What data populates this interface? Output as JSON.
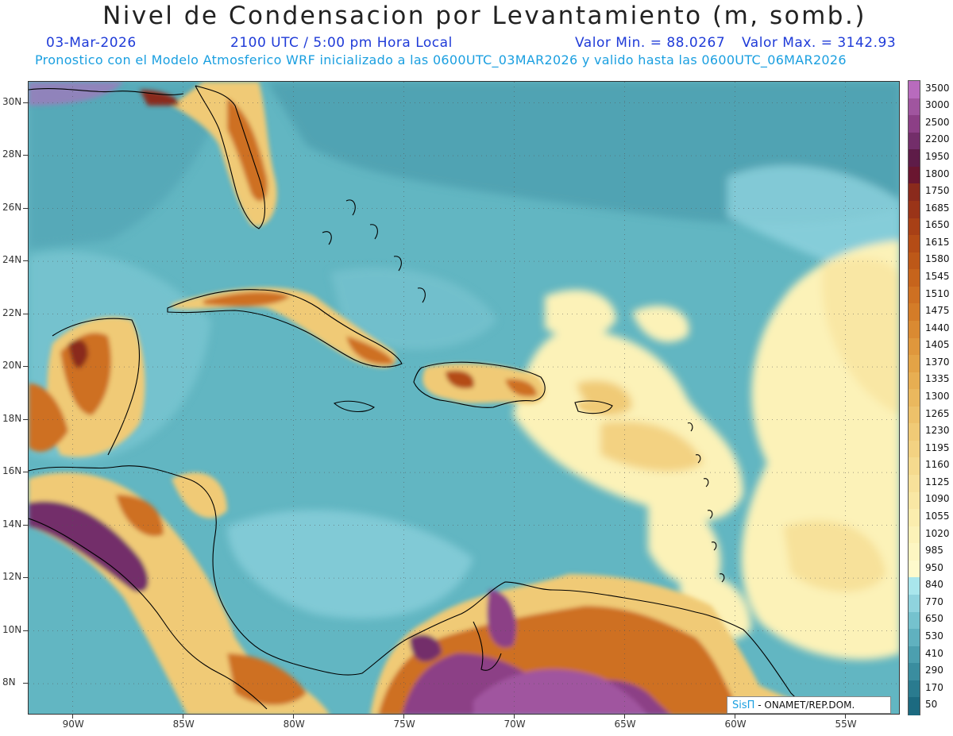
{
  "header": {
    "title": "Nivel de Condensacion por Levantamiento (m, somb.)",
    "date": "03-Mar-2026",
    "time": "2100 UTC / 5:00 pm Hora Local",
    "valmin": "Valor Min. = 88.0267",
    "valmax": "Valor Max. = 3142.93",
    "model_line": "Pronostico con el Modelo Atmosferico WRF inicializado a las 0600UTC_03MAR2026 y valido hasta las  0600UTC_06MAR2026"
  },
  "map": {
    "lat_labels": [
      "30N",
      "28N",
      "26N",
      "24N",
      "22N",
      "20N",
      "18N",
      "16N",
      "14N",
      "12N",
      "10N",
      "8N"
    ],
    "lat_values": [
      30,
      28,
      26,
      24,
      22,
      20,
      18,
      16,
      14,
      12,
      10,
      8
    ],
    "lon_labels": [
      "90W",
      "85W",
      "80W",
      "75W",
      "70W",
      "65W",
      "60W",
      "55W"
    ],
    "lon_values": [
      -90,
      -85,
      -80,
      -75,
      -70,
      -65,
      -60,
      -55
    ],
    "lat_range": [
      6.8,
      30.8
    ],
    "lon_range": [
      -92,
      -52.5
    ]
  },
  "colorbar": {
    "labels": [
      "3500",
      "3000",
      "2500",
      "2200",
      "1950",
      "1800",
      "1750",
      "1685",
      "1650",
      "1615",
      "1580",
      "1545",
      "1510",
      "1475",
      "1440",
      "1405",
      "1370",
      "1335",
      "1300",
      "1265",
      "1230",
      "1195",
      "1160",
      "1125",
      "1090",
      "1055",
      "1020",
      "985",
      "950",
      "840",
      "770",
      "650",
      "530",
      "410",
      "290",
      "170",
      "50"
    ],
    "colors": [
      "#b86bbd",
      "#a0559f",
      "#8c3f86",
      "#732e6a",
      "#5e1c48",
      "#6a1630",
      "#8a2a1c",
      "#9a3418",
      "#a84016",
      "#b44c16",
      "#bd5818",
      "#c6641c",
      "#ce7022",
      "#d47c28",
      "#da8a32",
      "#df973c",
      "#e3a346",
      "#e7ae52",
      "#eab85e",
      "#edc16a",
      "#f0ca76",
      "#f3d282",
      "#f5da8e",
      "#f7e19a",
      "#f9e7a4",
      "#fbedae",
      "#fcf2b8",
      "#fdf6c2",
      "#fefacc",
      "#a9e6ec",
      "#8fd3de",
      "#75c2ce",
      "#60b1bf",
      "#4c9faf",
      "#3a8d9f",
      "#2a7b8f",
      "#1c6a80"
    ]
  },
  "logo": {
    "mark": "SisΠ",
    "text": "- ONAMET/REP.DOM."
  }
}
